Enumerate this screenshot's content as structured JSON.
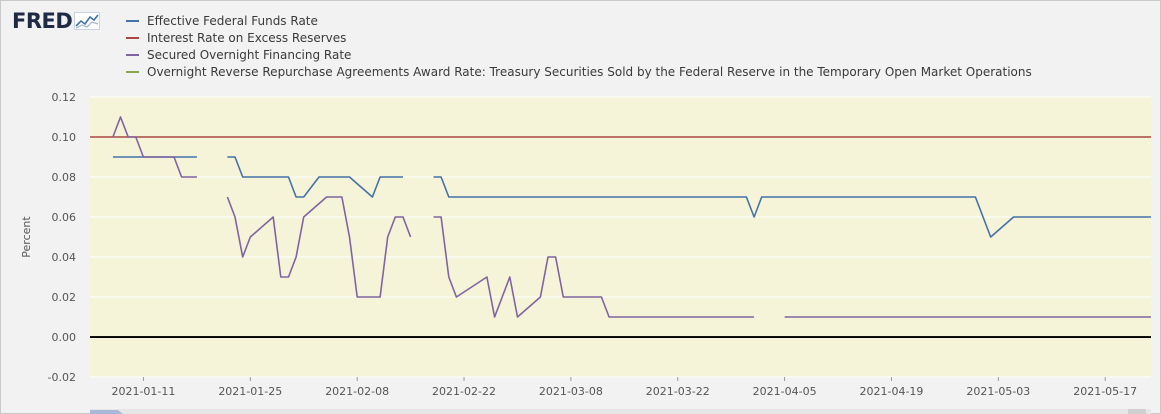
{
  "logo": {
    "text": "FRED",
    "mark": "trend-line-icon"
  },
  "chart_data": {
    "type": "line",
    "ylabel": "Percent",
    "ylim": [
      -0.02,
      0.12
    ],
    "yticks": [
      "0.12",
      "0.10",
      "0.08",
      "0.06",
      "0.04",
      "0.02",
      "0.00",
      "-0.02"
    ],
    "xlim": [
      "2021-01-04",
      "2021-05-23"
    ],
    "xticks": [
      "2021-01-11",
      "2021-01-25",
      "2021-02-08",
      "2021-02-22",
      "2021-03-08",
      "2021-03-22",
      "2021-04-05",
      "2021-04-19",
      "2021-05-03",
      "2021-05-17"
    ],
    "background": "#f5f4d9",
    "zero_line": true,
    "series": [
      {
        "name": "Effective Federal Funds Rate",
        "color": "#4572a7",
        "segments": [
          [
            [
              "2021-01-07",
              0.09
            ],
            [
              "2021-01-18",
              0.09
            ]
          ],
          [
            [
              "2021-01-22",
              0.09
            ],
            [
              "2021-01-23",
              0.09
            ],
            [
              "2021-01-24",
              0.08
            ],
            [
              "2021-01-30",
              0.08
            ],
            [
              "2021-01-31",
              0.07
            ],
            [
              "2021-02-01",
              0.07
            ],
            [
              "2021-02-03",
              0.08
            ],
            [
              "2021-02-07",
              0.08
            ],
            [
              "2021-02-10",
              0.07
            ],
            [
              "2021-02-11",
              0.08
            ],
            [
              "2021-02-14",
              0.08
            ]
          ],
          [
            [
              "2021-02-18",
              0.08
            ],
            [
              "2021-02-19",
              0.08
            ],
            [
              "2021-02-20",
              0.07
            ],
            [
              "2021-03-31",
              0.07
            ],
            [
              "2021-04-01",
              0.06
            ],
            [
              "2021-04-02",
              0.07
            ],
            [
              "2021-04-30",
              0.07
            ],
            [
              "2021-05-02",
              0.05
            ],
            [
              "2021-05-05",
              0.06
            ],
            [
              "2021-05-23",
              0.06
            ]
          ]
        ]
      },
      {
        "name": "Interest Rate on Excess Reserves",
        "color": "#aa4643",
        "segments": [
          [
            [
              "2021-01-04",
              0.1
            ],
            [
              "2021-05-23",
              0.1
            ]
          ]
        ]
      },
      {
        "name": "Secured Overnight Financing Rate",
        "color": "#8064a2",
        "segments": [
          [
            [
              "2021-01-07",
              0.1
            ],
            [
              "2021-01-08",
              0.11
            ],
            [
              "2021-01-09",
              0.1
            ],
            [
              "2021-01-10",
              0.1
            ],
            [
              "2021-01-11",
              0.09
            ],
            [
              "2021-01-15",
              0.09
            ],
            [
              "2021-01-16",
              0.08
            ],
            [
              "2021-01-18",
              0.08
            ]
          ],
          [
            [
              "2021-01-22",
              0.07
            ],
            [
              "2021-01-23",
              0.06
            ],
            [
              "2021-01-24",
              0.04
            ],
            [
              "2021-01-25",
              0.05
            ],
            [
              "2021-01-28",
              0.06
            ],
            [
              "2021-01-29",
              0.03
            ],
            [
              "2021-01-30",
              0.03
            ],
            [
              "2021-01-31",
              0.04
            ],
            [
              "2021-02-01",
              0.06
            ],
            [
              "2021-02-04",
              0.07
            ],
            [
              "2021-02-06",
              0.07
            ],
            [
              "2021-02-07",
              0.05
            ],
            [
              "2021-02-08",
              0.02
            ],
            [
              "2021-02-11",
              0.02
            ],
            [
              "2021-02-12",
              0.05
            ],
            [
              "2021-02-13",
              0.06
            ],
            [
              "2021-02-14",
              0.06
            ],
            [
              "2021-02-15",
              0.05
            ]
          ],
          [
            [
              "2021-02-18",
              0.06
            ],
            [
              "2021-02-19",
              0.06
            ],
            [
              "2021-02-20",
              0.03
            ],
            [
              "2021-02-21",
              0.02
            ],
            [
              "2021-02-25",
              0.03
            ],
            [
              "2021-02-26",
              0.01
            ],
            [
              "2021-02-28",
              0.03
            ],
            [
              "2021-03-01",
              0.01
            ],
            [
              "2021-03-04",
              0.02
            ],
            [
              "2021-03-05",
              0.04
            ],
            [
              "2021-03-06",
              0.04
            ],
            [
              "2021-03-07",
              0.02
            ],
            [
              "2021-03-12",
              0.02
            ],
            [
              "2021-03-13",
              0.01
            ],
            [
              "2021-04-01",
              0.01
            ]
          ],
          [
            [
              "2021-04-05",
              0.01
            ],
            [
              "2021-05-23",
              0.01
            ]
          ]
        ]
      },
      {
        "name": "Overnight Reverse Repurchase Agreements Award Rate: Treasury Securities Sold by the Federal Reserve in the Temporary Open Market Operations",
        "color": "#89a54e",
        "segments": [
          [
            [
              "2021-01-04",
              0.0
            ],
            [
              "2021-05-23",
              0.0
            ]
          ]
        ]
      }
    ]
  }
}
